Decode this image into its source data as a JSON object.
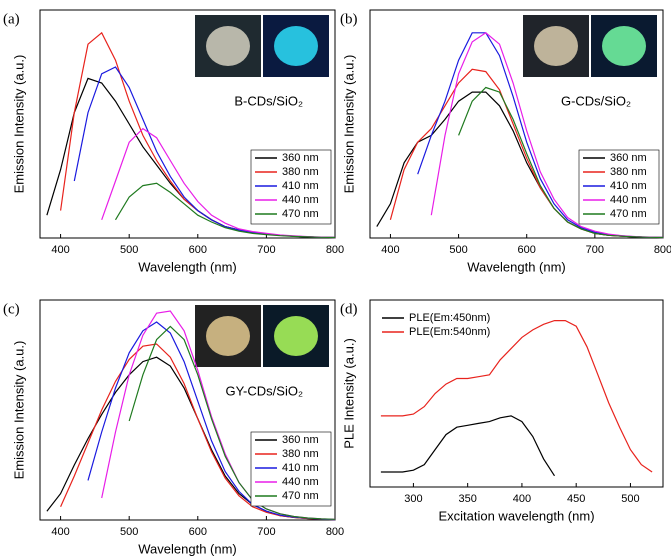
{
  "chart_data": [
    {
      "type": "line",
      "label": "(a)",
      "annotation": "B-CDs/SiO₂",
      "xlabel": "Wavelength (nm)",
      "ylabel": "Emission Intensity (a.u.)",
      "x": [
        380,
        400,
        420,
        440,
        460,
        480,
        500,
        520,
        540,
        560,
        580,
        600,
        620,
        640,
        660,
        680,
        700,
        720,
        740,
        760,
        780,
        800
      ],
      "xlim": [
        370,
        800
      ],
      "ylim": [
        0,
        1
      ],
      "xticks": [
        400,
        500,
        600,
        700,
        800
      ],
      "legend": "lower right",
      "series": [
        {
          "name": "360 nm",
          "color": "#000000",
          "values": [
            0.1,
            0.3,
            0.55,
            0.7,
            0.68,
            0.6,
            0.5,
            0.4,
            0.32,
            0.24,
            0.17,
            0.12,
            0.08,
            0.05,
            0.035,
            0.025,
            0.018,
            0.012,
            0.008,
            0.005,
            0.003,
            0.002
          ]
        },
        {
          "name": "380 nm",
          "color": "#e8231d",
          "values": [
            null,
            0.12,
            0.55,
            0.85,
            0.9,
            0.78,
            0.6,
            0.45,
            0.34,
            0.25,
            0.17,
            0.12,
            0.08,
            0.05,
            0.035,
            0.025,
            0.018,
            0.012,
            0.008,
            0.005,
            0.003,
            0.002
          ]
        },
        {
          "name": "410 nm",
          "color": "#1a1adf",
          "values": [
            null,
            null,
            0.25,
            0.55,
            0.72,
            0.75,
            0.66,
            0.52,
            0.38,
            0.27,
            0.18,
            0.12,
            0.08,
            0.05,
            0.035,
            0.025,
            0.018,
            0.012,
            0.008,
            0.005,
            0.003,
            0.002
          ]
        },
        {
          "name": "440 nm",
          "color": "#e81ee8",
          "values": [
            null,
            null,
            null,
            null,
            0.08,
            0.25,
            0.42,
            0.48,
            0.44,
            0.34,
            0.24,
            0.16,
            0.1,
            0.065,
            0.04,
            0.028,
            0.02,
            0.013,
            0.009,
            0.006,
            0.004,
            0.002
          ]
        },
        {
          "name": "470 nm",
          "color": "#1f7a1f",
          "values": [
            null,
            null,
            null,
            null,
            null,
            0.08,
            0.18,
            0.23,
            0.24,
            0.2,
            0.15,
            0.1,
            0.07,
            0.045,
            0.03,
            0.02,
            0.015,
            0.01,
            0.007,
            0.005,
            0.003,
            0.002
          ]
        }
      ]
    },
    {
      "type": "line",
      "label": "(b)",
      "annotation": "G-CDs/SiO₂",
      "xlabel": "Wavelength (nm)",
      "ylabel": "Emission Intensity (a.u.)",
      "x": [
        380,
        400,
        420,
        440,
        460,
        480,
        500,
        520,
        540,
        560,
        580,
        600,
        620,
        640,
        660,
        680,
        700,
        720,
        740,
        760,
        780,
        800
      ],
      "xlim": [
        370,
        800
      ],
      "ylim": [
        0,
        1
      ],
      "xticks": [
        400,
        500,
        600,
        700,
        800
      ],
      "legend": "lower right",
      "series": [
        {
          "name": "360 nm",
          "color": "#000000",
          "values": [
            0.05,
            0.15,
            0.33,
            0.42,
            0.45,
            0.52,
            0.6,
            0.64,
            0.64,
            0.58,
            0.47,
            0.33,
            0.22,
            0.13,
            0.07,
            0.04,
            0.02,
            0.012,
            0.008,
            0.005,
            0.003,
            0.002
          ]
        },
        {
          "name": "380 nm",
          "color": "#e8231d",
          "values": [
            null,
            0.08,
            0.3,
            0.42,
            0.48,
            0.58,
            0.68,
            0.74,
            0.73,
            0.65,
            0.5,
            0.35,
            0.22,
            0.13,
            0.07,
            0.04,
            0.02,
            0.012,
            0.008,
            0.005,
            0.003,
            0.002
          ]
        },
        {
          "name": "410 nm",
          "color": "#1a1adf",
          "values": [
            null,
            null,
            null,
            0.28,
            0.45,
            0.6,
            0.78,
            0.9,
            0.9,
            0.8,
            0.62,
            0.42,
            0.26,
            0.15,
            0.08,
            0.045,
            0.025,
            0.015,
            0.009,
            0.005,
            0.003,
            0.002
          ]
        },
        {
          "name": "440 nm",
          "color": "#e81ee8",
          "values": [
            null,
            null,
            null,
            null,
            0.1,
            0.45,
            0.72,
            0.86,
            0.9,
            0.85,
            0.68,
            0.47,
            0.29,
            0.17,
            0.09,
            0.05,
            0.03,
            0.017,
            0.01,
            0.006,
            0.004,
            0.002
          ]
        },
        {
          "name": "470 nm",
          "color": "#1f7a1f",
          "values": [
            null,
            null,
            null,
            null,
            null,
            null,
            0.45,
            0.6,
            0.66,
            0.64,
            0.52,
            0.37,
            0.23,
            0.13,
            0.07,
            0.04,
            0.02,
            0.012,
            0.008,
            0.005,
            0.003,
            0.002
          ]
        }
      ]
    },
    {
      "type": "line",
      "label": "(c)",
      "annotation": "GY-CDs/SiO₂",
      "xlabel": "Wavelength (nm)",
      "ylabel": "Emission Intensity (a.u.)",
      "x": [
        380,
        400,
        420,
        440,
        460,
        480,
        500,
        520,
        540,
        560,
        580,
        600,
        620,
        640,
        660,
        680,
        700,
        720,
        740,
        760,
        780,
        800
      ],
      "xlim": [
        370,
        800
      ],
      "ylim": [
        0,
        1
      ],
      "xticks": [
        400,
        500,
        600,
        700,
        800
      ],
      "legend": "lower right",
      "series": [
        {
          "name": "360 nm",
          "color": "#000000",
          "values": [
            0.04,
            0.12,
            0.25,
            0.37,
            0.48,
            0.58,
            0.66,
            0.72,
            0.74,
            0.7,
            0.6,
            0.46,
            0.32,
            0.2,
            0.12,
            0.07,
            0.04,
            0.02,
            0.012,
            0.007,
            0.004,
            0.002
          ]
        },
        {
          "name": "380 nm",
          "color": "#e8231d",
          "values": [
            null,
            0.06,
            0.2,
            0.35,
            0.5,
            0.63,
            0.73,
            0.79,
            0.8,
            0.74,
            0.62,
            0.46,
            0.31,
            0.19,
            0.11,
            0.06,
            0.035,
            0.02,
            0.012,
            0.007,
            0.004,
            0.002
          ]
        },
        {
          "name": "410 nm",
          "color": "#1a1adf",
          "values": [
            null,
            null,
            null,
            0.18,
            0.4,
            0.6,
            0.76,
            0.86,
            0.9,
            0.85,
            0.72,
            0.54,
            0.36,
            0.22,
            0.13,
            0.07,
            0.04,
            0.022,
            0.013,
            0.008,
            0.004,
            0.002
          ]
        },
        {
          "name": "440 nm",
          "color": "#e81ee8",
          "values": [
            null,
            null,
            null,
            null,
            0.1,
            0.4,
            0.66,
            0.84,
            0.94,
            0.95,
            0.86,
            0.68,
            0.47,
            0.3,
            0.17,
            0.09,
            0.05,
            0.028,
            0.016,
            0.009,
            0.005,
            0.003
          ]
        },
        {
          "name": "470 nm",
          "color": "#1f7a1f",
          "values": [
            null,
            null,
            null,
            null,
            null,
            null,
            0.45,
            0.66,
            0.82,
            0.88,
            0.82,
            0.66,
            0.46,
            0.29,
            0.17,
            0.09,
            0.05,
            0.028,
            0.016,
            0.009,
            0.005,
            0.003
          ]
        }
      ]
    },
    {
      "type": "line",
      "label": "(d)",
      "xlabel": "Excitation wavelength (nm)",
      "ylabel": "PLE Intensity (a.u.)",
      "x": [
        270,
        280,
        290,
        300,
        310,
        320,
        330,
        340,
        350,
        360,
        370,
        380,
        390,
        400,
        410,
        420,
        430,
        440,
        450,
        460,
        470,
        480,
        490,
        500,
        510,
        520
      ],
      "xlim": [
        260,
        530
      ],
      "ylim": [
        0,
        1
      ],
      "xticks": [
        300,
        350,
        400,
        450,
        500
      ],
      "legend": "upper left",
      "series": [
        {
          "name": "PLE(Em:450nm)",
          "color": "#000000",
          "values": [
            0.08,
            0.08,
            0.08,
            0.09,
            0.12,
            0.2,
            0.28,
            0.32,
            0.33,
            0.34,
            0.35,
            0.37,
            0.38,
            0.35,
            0.27,
            0.15,
            0.06,
            null,
            null,
            null,
            null,
            null,
            null,
            null,
            null,
            null
          ]
        },
        {
          "name": "PLE(Em:540nm)",
          "color": "#e8231d",
          "values": [
            0.38,
            0.38,
            0.38,
            0.39,
            0.43,
            0.5,
            0.55,
            0.58,
            0.58,
            0.59,
            0.6,
            0.68,
            0.74,
            0.8,
            0.84,
            0.87,
            0.89,
            0.89,
            0.86,
            0.75,
            0.6,
            0.45,
            0.32,
            0.2,
            0.12,
            0.08
          ]
        }
      ]
    }
  ]
}
